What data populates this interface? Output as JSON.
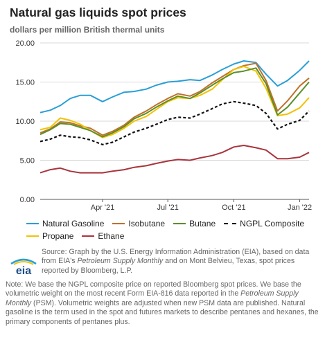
{
  "header": {
    "title": "Natural gas liquids spot prices",
    "subtitle": "dollars per million British thermal units"
  },
  "logo": {
    "text": "eia"
  },
  "source": {
    "prefix": "Source: Graph by the U.S. Energy Information Administration (EIA), based on data from EIA's ",
    "italic": "Petroleum Supply Monthly",
    "suffix": " and on Mont Belvieu, Texas, spot prices reported by Bloomberg, L.P."
  },
  "note": {
    "prefix": "Note: We base the NGPL composite price on reported Bloomberg spot prices. We base the volumetric weight on the most recent Form EIA-816 data reported in the ",
    "italic": "Petroleum Supply Monthly",
    "suffix": " (PSM). Volumetric weights are adjusted when new PSM data are published. Natural gasoline is the term used in the spot and futures markets to describe pentanes and hexanes, the primary components of pentanes plus."
  },
  "colors": {
    "natural_gasoline": "#2a9fd6",
    "isobutane": "#c0702a",
    "butane": "#5a8f29",
    "ngpl": "#111111",
    "propane": "#f2c200",
    "ethane": "#a8343c",
    "axis": "#555555",
    "grid": "#d9d9d9"
  },
  "chart_data": {
    "type": "line",
    "title": "Natural gas liquids spot prices",
    "ylabel": "dollars per million British thermal units",
    "xlabel": "",
    "ylim": [
      0,
      20
    ],
    "yticks": [
      "0.00",
      "5.00",
      "10.00",
      "15.00",
      "20.00"
    ],
    "xticks": [
      {
        "label": "Apr '21",
        "date": "2021-04-01"
      },
      {
        "label": "Jul '21",
        "date": "2021-07-01"
      },
      {
        "label": "Oct '21",
        "date": "2021-10-01"
      },
      {
        "label": "Jan '22",
        "date": "2022-01-01"
      }
    ],
    "xrange": [
      "2021-01-04",
      "2022-01-14"
    ],
    "grid": "horizontal",
    "legend_position": "bottom",
    "x": [
      "2021-01-04",
      "2021-01-18",
      "2021-02-01",
      "2021-02-15",
      "2021-03-01",
      "2021-03-15",
      "2021-04-01",
      "2021-04-15",
      "2021-05-01",
      "2021-05-15",
      "2021-06-01",
      "2021-06-15",
      "2021-07-01",
      "2021-07-15",
      "2021-08-01",
      "2021-08-15",
      "2021-09-01",
      "2021-09-15",
      "2021-10-01",
      "2021-10-15",
      "2021-11-01",
      "2021-11-15",
      "2021-12-01",
      "2021-12-15",
      "2022-01-01",
      "2022-01-14"
    ],
    "series": [
      {
        "name": "Natural Gasoline",
        "key": "natural_gasoline",
        "style": "solid",
        "values": [
          11.1,
          11.4,
          12.0,
          12.9,
          13.3,
          13.3,
          12.5,
          13.1,
          13.7,
          13.8,
          14.1,
          14.6,
          15.0,
          15.1,
          15.3,
          15.2,
          15.9,
          16.6,
          17.3,
          17.7,
          17.5,
          16.0,
          14.5,
          15.2,
          16.5,
          17.7
        ]
      },
      {
        "name": "Isobutane",
        "key": "isobutane",
        "style": "solid",
        "values": [
          8.5,
          9.0,
          9.9,
          9.8,
          9.4,
          9.1,
          8.2,
          8.7,
          9.5,
          10.5,
          11.3,
          12.1,
          12.9,
          13.5,
          13.2,
          13.8,
          14.9,
          15.7,
          16.6,
          17.1,
          17.4,
          15.2,
          11.3,
          12.6,
          14.5,
          15.5
        ]
      },
      {
        "name": "Butane",
        "key": "butane",
        "style": "solid",
        "values": [
          8.3,
          8.9,
          9.7,
          9.6,
          9.2,
          8.8,
          8.0,
          8.5,
          9.3,
          10.3,
          11.0,
          11.8,
          12.6,
          13.2,
          12.9,
          13.6,
          14.6,
          15.4,
          16.2,
          16.4,
          16.8,
          14.8,
          10.8,
          11.8,
          13.6,
          15.0
        ]
      },
      {
        "name": "NGPL Composite",
        "key": "ngpl",
        "style": "dashed",
        "values": [
          7.4,
          7.7,
          8.2,
          8.0,
          7.9,
          7.6,
          7.0,
          7.3,
          8.0,
          8.6,
          9.1,
          9.6,
          10.2,
          10.5,
          10.4,
          10.9,
          11.6,
          12.2,
          12.5,
          12.3,
          12.0,
          11.0,
          9.0,
          9.6,
          10.1,
          11.3
        ]
      },
      {
        "name": "Propane",
        "key": "propane",
        "style": "solid",
        "values": [
          8.9,
          9.2,
          10.4,
          10.1,
          9.6,
          8.8,
          7.9,
          8.3,
          9.1,
          10.0,
          10.6,
          11.5,
          12.5,
          13.0,
          12.9,
          13.3,
          14.1,
          15.3,
          16.6,
          17.0,
          16.4,
          14.2,
          10.7,
          10.9,
          11.7,
          13.0
        ]
      },
      {
        "name": "Ethane",
        "key": "ethane",
        "style": "solid",
        "values": [
          3.4,
          3.8,
          4.0,
          3.6,
          3.4,
          3.4,
          3.4,
          3.6,
          3.8,
          4.1,
          4.3,
          4.6,
          4.9,
          5.1,
          5.0,
          5.3,
          5.6,
          6.0,
          6.7,
          6.9,
          6.6,
          6.3,
          5.2,
          5.2,
          5.4,
          6.0
        ]
      }
    ]
  },
  "legend": {
    "rows": [
      [
        "natural_gasoline",
        "isobutane",
        "butane",
        "ngpl"
      ],
      [
        "propane",
        "ethane"
      ]
    ]
  }
}
